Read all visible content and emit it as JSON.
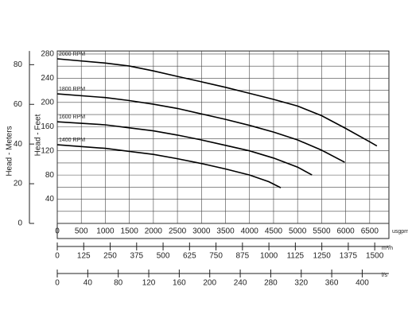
{
  "chart_data": {
    "type": "line",
    "x_label": "usgpm",
    "y_label": "Head - Feet",
    "y2_label": "Head - Meters",
    "xlim": [
      0,
      6900
    ],
    "xticks": [
      0,
      500,
      1000,
      1500,
      2000,
      2500,
      3000,
      3500,
      4000,
      4500,
      5000,
      5500,
      6000,
      6500
    ],
    "ylim": [
      0,
      285
    ],
    "yticks": [
      40,
      80,
      120,
      160,
      200,
      240,
      280
    ],
    "ygrid": [
      0,
      20,
      40,
      60,
      80,
      100,
      120,
      140,
      160,
      180,
      200,
      220,
      240,
      260,
      280
    ],
    "y2lim": [
      0,
      86.9
    ],
    "y2ticks": [
      0,
      20,
      40,
      60,
      80
    ],
    "x2_label": "m³/h",
    "x2lim": [
      0,
      1567
    ],
    "x2ticks": [
      0,
      125,
      250,
      375,
      500,
      625,
      750,
      875,
      1000,
      1125,
      1250,
      1375,
      1500
    ],
    "x3_label": "l/s",
    "x3lim": [
      0,
      435
    ],
    "x3ticks": [
      0,
      40,
      80,
      120,
      160,
      200,
      240,
      280,
      320,
      360,
      400
    ],
    "grid": true,
    "series": [
      {
        "name": "2000 RPM",
        "color": "#000000",
        "x": [
          0,
          1000,
          1500,
          2000,
          2500,
          3000,
          3500,
          4000,
          4500,
          5000,
          5500,
          6000,
          6500,
          6650
        ],
        "values": [
          272,
          265,
          260,
          252,
          243,
          234,
          225,
          215,
          205,
          194,
          178,
          157,
          135,
          128
        ]
      },
      {
        "name": "1800 RPM",
        "color": "#000000",
        "x": [
          0,
          1000,
          1500,
          2000,
          2500,
          3000,
          3500,
          4000,
          4500,
          5000,
          5500,
          5980
        ],
        "values": [
          214,
          208,
          203,
          197,
          190,
          181,
          172,
          162,
          151,
          138,
          121,
          101
        ]
      },
      {
        "name": "1600 RPM",
        "color": "#000000",
        "x": [
          0,
          1000,
          1500,
          2000,
          2500,
          3000,
          3500,
          4000,
          4500,
          5000,
          5300
        ],
        "values": [
          168,
          163,
          158,
          153,
          146,
          138,
          129,
          120,
          108,
          93,
          80
        ]
      },
      {
        "name": "1400 RPM",
        "color": "#000000",
        "x": [
          0,
          1000,
          1500,
          2000,
          2500,
          3000,
          3500,
          4000,
          4400,
          4650
        ],
        "values": [
          130,
          124,
          119,
          114,
          107,
          99,
          90,
          80,
          69,
          59
        ]
      }
    ]
  }
}
